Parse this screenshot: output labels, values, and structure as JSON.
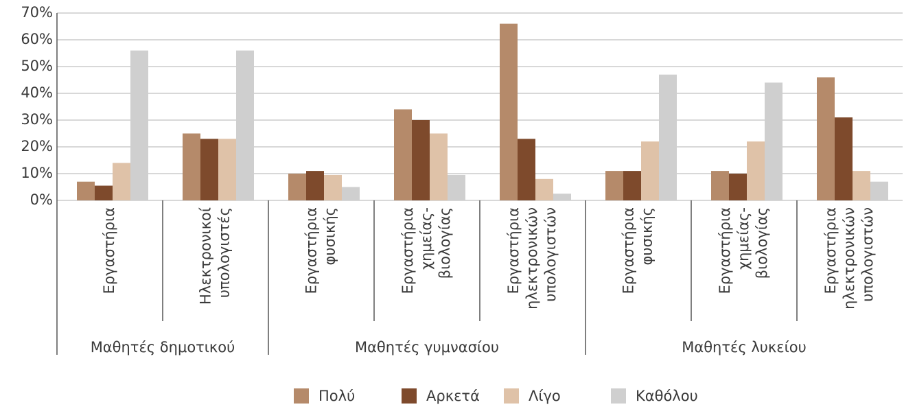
{
  "chart_data": {
    "type": "bar",
    "groups": [
      {
        "name": "Μαθητές δημοτικού",
        "categories": [
          [
            "Εργαστήρια"
          ],
          [
            "Ηλεκτρονικοί",
            "υπολογιστές"
          ]
        ]
      },
      {
        "name": "Μαθητές γυμνασίου",
        "categories": [
          [
            "Εργαστήρια",
            "φυσικής"
          ],
          [
            "Εργαστήρια",
            "χημείας-",
            "βιολογίας"
          ],
          [
            "Εργαστήρια",
            "ηλεκτρονικών",
            "υπολογιστών"
          ]
        ]
      },
      {
        "name": "Μαθητές λυκείου",
        "categories": [
          [
            "Εργαστήρια",
            "φυσικής"
          ],
          [
            "Εργαστήρια",
            "χημείας-",
            "βιολογίας"
          ],
          [
            "Εργαστήρια",
            "ηλεκτρονικών",
            "υπολογιστών"
          ]
        ]
      }
    ],
    "series": [
      {
        "name": "Πολύ",
        "color": "#b58a6a",
        "values": [
          7,
          25,
          10,
          34,
          66,
          11,
          11,
          46
        ]
      },
      {
        "name": "Αρκετά",
        "color": "#7e4a2c",
        "values": [
          5.5,
          23,
          11,
          30,
          23,
          11,
          10,
          31
        ]
      },
      {
        "name": "Λίγο",
        "color": "#dfc2a8",
        "values": [
          14,
          23,
          9.5,
          25,
          8,
          22,
          22,
          11
        ]
      },
      {
        "name": "Καθόλου",
        "color": "#cfcfcf",
        "values": [
          56,
          56,
          5,
          9.5,
          2.5,
          47,
          44,
          7
        ]
      }
    ],
    "ylim": [
      0,
      70
    ],
    "yticks": [
      {
        "value": 0,
        "label": "0%"
      },
      {
        "value": 10,
        "label": "10%"
      },
      {
        "value": 20,
        "label": "20%"
      },
      {
        "value": 30,
        "label": "30%"
      },
      {
        "value": 40,
        "label": "40%"
      },
      {
        "value": 50,
        "label": "50%"
      },
      {
        "value": 60,
        "label": "60%"
      },
      {
        "value": 70,
        "label": "70%"
      }
    ],
    "grid": true,
    "legend": "bottom"
  }
}
